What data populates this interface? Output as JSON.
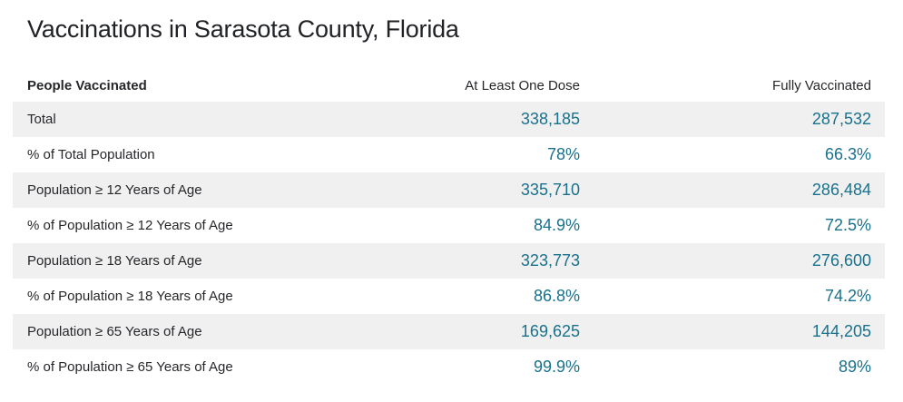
{
  "title": "Vaccinations in Sarasota County, Florida",
  "colors": {
    "value_accent": "#19718c",
    "row_stripe": "#f0f0f1",
    "text_dark": "#26272a",
    "background": "#ffffff"
  },
  "chart_data": {
    "type": "table",
    "title": "Vaccinations in Sarasota County, Florida",
    "columns": [
      "People Vaccinated",
      "At Least One Dose",
      "Fully Vaccinated"
    ],
    "rows": [
      {
        "label": "Total",
        "at_least_one_dose": "338,185",
        "fully_vaccinated": "287,532"
      },
      {
        "label": "% of Total Population",
        "at_least_one_dose": "78%",
        "fully_vaccinated": "66.3%"
      },
      {
        "label": "Population ≥ 12 Years of Age",
        "at_least_one_dose": "335,710",
        "fully_vaccinated": "286,484"
      },
      {
        "label": "% of Population ≥ 12 Years of Age",
        "at_least_one_dose": "84.9%",
        "fully_vaccinated": "72.5%"
      },
      {
        "label": "Population ≥ 18 Years of Age",
        "at_least_one_dose": "323,773",
        "fully_vaccinated": "276,600"
      },
      {
        "label": "% of Population ≥ 18 Years of Age",
        "at_least_one_dose": "86.8%",
        "fully_vaccinated": "74.2%"
      },
      {
        "label": "Population ≥ 65 Years of Age",
        "at_least_one_dose": "169,625",
        "fully_vaccinated": "144,205"
      },
      {
        "label": "% of Population ≥ 65 Years of Age",
        "at_least_one_dose": "99.9%",
        "fully_vaccinated": "89%"
      }
    ]
  }
}
